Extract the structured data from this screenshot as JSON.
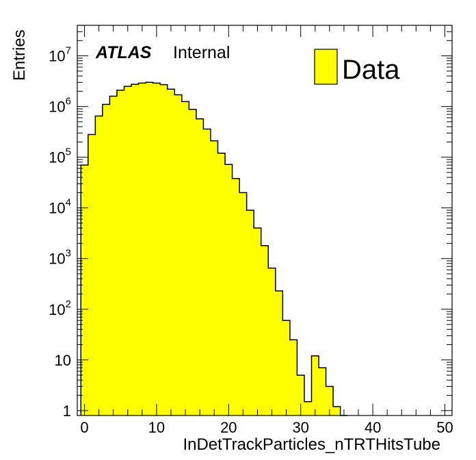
{
  "colors": {
    "fill": "#ffff00",
    "line": "#000000",
    "background": "#ffffff"
  },
  "chart_data": {
    "type": "bar",
    "histogram": true,
    "xlabel": "InDetTrackParticles_nTRTHitsTube",
    "ylabel": "Entries",
    "xlim": [
      -1,
      51
    ],
    "ylim": [
      0.8,
      40000000
    ],
    "ylog": true,
    "grid": false,
    "legend_position": "top-right",
    "legend": [
      {
        "name": "Data",
        "color": "#ffff00"
      }
    ],
    "atlas_label": "ATLAS",
    "atlas_status": "Internal",
    "x_ticks": [
      0,
      10,
      20,
      30,
      40,
      50
    ],
    "x_tick_labels": [
      "0",
      "10",
      "20",
      "30",
      "40",
      "50"
    ],
    "y_ticks": [
      {
        "value": 1,
        "base": "1",
        "exp": ""
      },
      {
        "value": 10,
        "base": "10",
        "exp": ""
      },
      {
        "value": 100,
        "base": "10",
        "exp": "2"
      },
      {
        "value": 1000,
        "base": "10",
        "exp": "3"
      },
      {
        "value": 10000,
        "base": "10",
        "exp": "4"
      },
      {
        "value": 100000,
        "base": "10",
        "exp": "5"
      },
      {
        "value": 1000000,
        "base": "10",
        "exp": "6"
      },
      {
        "value": 10000000,
        "base": "10",
        "exp": "7"
      }
    ],
    "bin_edges": [
      -0.5,
      0.5,
      1.5,
      2.5,
      3.5,
      4.5,
      5.5,
      6.5,
      7.5,
      8.5,
      9.5,
      10.5,
      11.5,
      12.5,
      13.5,
      14.5,
      15.5,
      16.5,
      17.5,
      18.5,
      19.5,
      20.5,
      21.5,
      22.5,
      23.5,
      24.5,
      25.5,
      26.5,
      27.5,
      28.5,
      29.5,
      30.5,
      31.5,
      32.5,
      33.5,
      34.5,
      35.5,
      36.5
    ],
    "values": [
      70000,
      280000,
      650000,
      1100000,
      1600000,
      2100000,
      2500000,
      2750000,
      2900000,
      3000000,
      2900000,
      2700000,
      2200000,
      1700000,
      1250000,
      880000,
      570000,
      360000,
      210000,
      120000,
      72000,
      38000,
      20000,
      9000,
      4000,
      1800,
      650,
      230,
      60,
      25,
      5,
      1.5,
      12,
      7,
      3,
      1.2,
      0
    ]
  }
}
